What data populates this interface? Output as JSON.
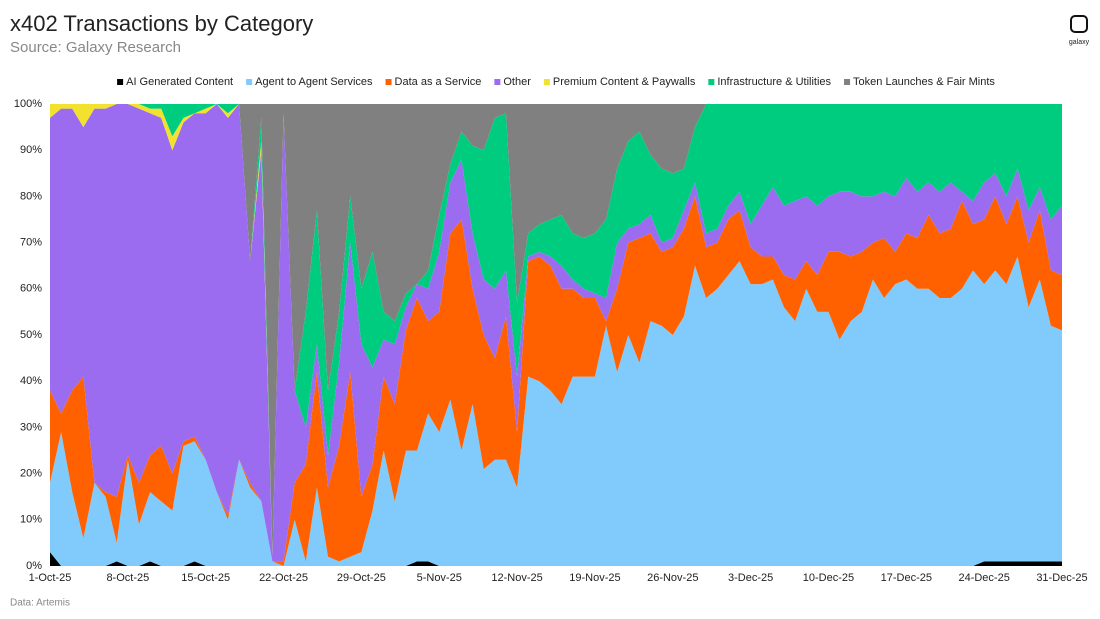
{
  "chart_data": {
    "type": "stacked-area",
    "title": "x402 Transactions by Category",
    "subtitle": "Source: Galaxy Research",
    "source_note": "Data: Artemis",
    "logo": "galaxy",
    "categories": [
      "1-Oct-25",
      null,
      null,
      null,
      null,
      null,
      null,
      "8-Oct-25",
      null,
      null,
      null,
      null,
      null,
      null,
      "15-Oct-25",
      null,
      null,
      null,
      null,
      null,
      null,
      "22-Oct-25",
      null,
      null,
      null,
      null,
      null,
      null,
      "29-Oct-25",
      null,
      null,
      null,
      null,
      null,
      null,
      "5-Nov-25",
      null,
      null,
      null,
      null,
      null,
      null,
      "12-Nov-25",
      null,
      null,
      null,
      null,
      null,
      null,
      "19-Nov-25",
      null,
      null,
      null,
      null,
      null,
      null,
      "26-Nov-25",
      null,
      null,
      null,
      null,
      null,
      null,
      "3-Dec-25",
      null,
      null,
      null,
      null,
      null,
      null,
      "10-Dec-25",
      null,
      null,
      null,
      null,
      null,
      null,
      "17-Dec-25",
      null,
      null,
      null,
      null,
      null,
      null,
      "24-Dec-25",
      null,
      null,
      null,
      null,
      null,
      null,
      "31-Dec-25"
    ],
    "series": [
      {
        "name": "AI Generated Content",
        "color": "#000000",
        "values": [
          3,
          0,
          0,
          0,
          0,
          0,
          1,
          0,
          0,
          1,
          0,
          0,
          0,
          1,
          0,
          0,
          0,
          0,
          0,
          0,
          0,
          0,
          0,
          0,
          0,
          0,
          0,
          0,
          0,
          0,
          0,
          0,
          0,
          1,
          1,
          0,
          0,
          0,
          0,
          0,
          0,
          0,
          0,
          0,
          0,
          0,
          0,
          0,
          0,
          0,
          0,
          0,
          0,
          0,
          0,
          0,
          0,
          0,
          0,
          0,
          0,
          0,
          0,
          0,
          0,
          0,
          0,
          0,
          0,
          0,
          0,
          0,
          0,
          0,
          0,
          0,
          0,
          0,
          0,
          0,
          0,
          0,
          0,
          0,
          1,
          1,
          1,
          1,
          1,
          1,
          1,
          1
        ]
      },
      {
        "name": "Agent to Agent Services",
        "color": "#80cbfb",
        "values": [
          15,
          29,
          16,
          6,
          18,
          15,
          4,
          23,
          9,
          15,
          14,
          12,
          26,
          26,
          23,
          16,
          10,
          23,
          17,
          14,
          1,
          0,
          10,
          1,
          17,
          2,
          1,
          2,
          3,
          12,
          25,
          14,
          25,
          24,
          32,
          29,
          36,
          25,
          35,
          21,
          23,
          23,
          17,
          41,
          40,
          38,
          35,
          41,
          41,
          41,
          52,
          42,
          50,
          44,
          53,
          52,
          50,
          54,
          65,
          58,
          60,
          63,
          66,
          61,
          61,
          62,
          56,
          53,
          60,
          55,
          55,
          49,
          53,
          55,
          62,
          58,
          61,
          62,
          60,
          60,
          58,
          58,
          60,
          64,
          60,
          63,
          60,
          66,
          55,
          61,
          51,
          50
        ]
      },
      {
        "name": "Data as a Service",
        "color": "#ff6100",
        "values": [
          20,
          4,
          22,
          35,
          0,
          1,
          10,
          1,
          9,
          8,
          12,
          8,
          1,
          1,
          0,
          0,
          1,
          0,
          1,
          0,
          0,
          1,
          8,
          21,
          25,
          15,
          25,
          40,
          12,
          10,
          16,
          21,
          26,
          33,
          20,
          26,
          36,
          50,
          25,
          29,
          22,
          31,
          12,
          25,
          27,
          27,
          25,
          19,
          17,
          17,
          1,
          18,
          20,
          27,
          19,
          16,
          19,
          19,
          15,
          11,
          10,
          12,
          11,
          8,
          6,
          5,
          7,
          9,
          6,
          8,
          13,
          19,
          14,
          13,
          8,
          13,
          7,
          10,
          11,
          16,
          14,
          15,
          19,
          10,
          14,
          16,
          13,
          13,
          14,
          15,
          12,
          12
        ]
      },
      {
        "name": "Other",
        "color": "#9b6cf0",
        "values": [
          59,
          66,
          61,
          54,
          81,
          83,
          85,
          76,
          81,
          74,
          71,
          70,
          69,
          70,
          75,
          84,
          86,
          77,
          48,
          76,
          1,
          97,
          20,
          8,
          6,
          7,
          18,
          28,
          33,
          21,
          8,
          13,
          5,
          3,
          7,
          13,
          11,
          13,
          12,
          12,
          15,
          10,
          12,
          1,
          1,
          2,
          5,
          2,
          2,
          1,
          5,
          10,
          3,
          3,
          4,
          2,
          2,
          4,
          3,
          3,
          3,
          3,
          4,
          5,
          11,
          15,
          15,
          17,
          14,
          15,
          12,
          13,
          14,
          12,
          10,
          10,
          12,
          12,
          10,
          7,
          9,
          10,
          2,
          5,
          8,
          5,
          6,
          6,
          7,
          5,
          11,
          15
        ]
      },
      {
        "name": "Premium Content & Paywalls",
        "color": "#f2e22e",
        "values": [
          3,
          1,
          1,
          5,
          1,
          1,
          0,
          0,
          1,
          1,
          2,
          3,
          1,
          0,
          1,
          0,
          1,
          0,
          0,
          2,
          0,
          0,
          0,
          0,
          0,
          0,
          0,
          0,
          0,
          0,
          0,
          0,
          0,
          0,
          0,
          0,
          0,
          0,
          0,
          0,
          0,
          0,
          0,
          0,
          0,
          0,
          0,
          0,
          0,
          0,
          0,
          0,
          0,
          0,
          0,
          0,
          0,
          0,
          0,
          0,
          0,
          0,
          0,
          0,
          0,
          0,
          0,
          0,
          0,
          0,
          0,
          0,
          0,
          0,
          0,
          0,
          0,
          0,
          0,
          0,
          0,
          0,
          0,
          0,
          0,
          0,
          0,
          0,
          0,
          0,
          0,
          0
        ]
      },
      {
        "name": "Infrastructure & Utilities",
        "color": "#00cc80",
        "values": [
          0,
          0,
          0,
          0,
          0,
          0,
          0,
          0,
          0,
          1,
          1,
          7,
          3,
          2,
          1,
          0,
          2,
          0,
          0,
          5,
          0,
          0,
          0,
          25,
          29,
          14,
          11,
          10,
          12,
          25,
          6,
          5,
          3,
          0,
          4,
          8,
          4,
          6,
          19,
          28,
          37,
          34,
          16,
          5,
          6,
          8,
          11,
          10,
          11,
          13,
          17,
          16,
          19,
          20,
          13,
          16,
          14,
          9,
          12,
          28,
          27,
          22,
          19,
          26,
          22,
          18,
          22,
          21,
          20,
          22,
          20,
          19,
          19,
          20,
          20,
          19,
          20,
          16,
          19,
          17,
          19,
          17,
          19,
          21,
          17,
          15,
          20,
          14,
          23,
          18,
          25,
          22
        ]
      },
      {
        "name": "Token Launches & Fair Mints",
        "color": "#808080",
        "values": [
          0,
          0,
          0,
          0,
          0,
          0,
          0,
          0,
          0,
          0,
          0,
          0,
          0,
          0,
          0,
          0,
          0,
          0,
          34,
          3,
          98,
          2,
          62,
          45,
          23,
          62,
          45,
          20,
          40,
          32,
          45,
          47,
          41,
          39,
          36,
          24,
          13,
          6,
          9,
          10,
          3,
          2,
          43,
          28,
          26,
          25,
          24,
          28,
          29,
          28,
          25,
          14,
          8,
          6,
          11,
          14,
          15,
          14,
          5,
          0,
          0,
          0,
          0,
          0,
          0,
          0,
          0,
          0,
          0,
          0,
          0,
          0,
          0,
          0,
          0,
          0,
          0,
          0,
          0,
          0,
          0,
          0,
          0,
          0,
          0,
          0,
          0,
          0,
          0,
          0,
          0,
          0
        ]
      }
    ],
    "ylim": [
      0,
      100
    ],
    "yticks": [
      {
        "value": 0,
        "label": "0%"
      },
      {
        "value": 10,
        "label": "10%"
      },
      {
        "value": 20,
        "label": "20%"
      },
      {
        "value": 30,
        "label": "30%"
      },
      {
        "value": 40,
        "label": "40%"
      },
      {
        "value": 50,
        "label": "50%"
      },
      {
        "value": 60,
        "label": "60%"
      },
      {
        "value": 70,
        "label": "70%"
      },
      {
        "value": 80,
        "label": "80%"
      },
      {
        "value": 90,
        "label": "90%"
      },
      {
        "value": 100,
        "label": "100%"
      }
    ],
    "grid": false,
    "legend": "top"
  }
}
